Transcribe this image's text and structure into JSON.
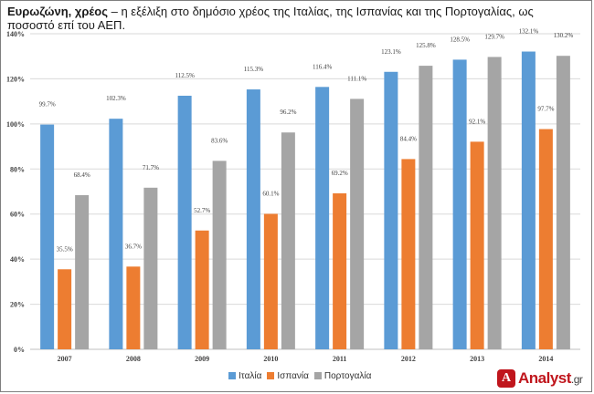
{
  "title": {
    "bold": "Ευρωζώνη, χρέος",
    "rest": " – η εξέλιξη στο δημόσιο χρέος της Ιταλίας, της Ισπανίας και της Πορτογαλίας, ως ποσοστό επί του ΑΕΠ."
  },
  "logo": {
    "text": "Analyst",
    "domain": ".gr"
  },
  "colors": {
    "italy": "#5b9bd5",
    "spain": "#ed7d31",
    "portugal": "#a5a5a5"
  },
  "chart_data": {
    "type": "bar",
    "categories": [
      "2007",
      "2008",
      "2009",
      "2010",
      "2011",
      "2012",
      "2013",
      "2014"
    ],
    "series": [
      {
        "name": "Ιταλία",
        "values": [
          99.7,
          102.3,
          112.5,
          115.3,
          116.4,
          123.1,
          128.5,
          132.1
        ],
        "labels": [
          "99.7%",
          "102.3%",
          "112.5%",
          "115.3%",
          "116.4%",
          "123.1%",
          "128.5%",
          "132.1%"
        ]
      },
      {
        "name": "Ισπανία",
        "values": [
          35.5,
          36.7,
          52.7,
          60.1,
          69.2,
          84.4,
          92.1,
          97.7
        ],
        "labels": [
          "35.5%",
          "36.7%",
          "52.7%",
          "60.1%",
          "69.2%",
          "84.4%",
          "92.1%",
          "97.7%"
        ]
      },
      {
        "name": "Πορτογαλία",
        "values": [
          68.4,
          71.7,
          83.6,
          96.2,
          111.1,
          125.8,
          129.7,
          130.2
        ],
        "labels": [
          "68.4%",
          "71.7%",
          "83.6%",
          "96.2%",
          "111.1%",
          "125.8%",
          "129.7%",
          "130.2%"
        ]
      }
    ],
    "ylim": [
      0,
      140
    ],
    "yticks": [
      0,
      20,
      40,
      60,
      80,
      100,
      120,
      140
    ],
    "ytick_labels": [
      "0%",
      "20%",
      "40%",
      "60%",
      "80%",
      "100%",
      "120%",
      "140%"
    ],
    "grid": true,
    "legend": "bottom-center"
  }
}
